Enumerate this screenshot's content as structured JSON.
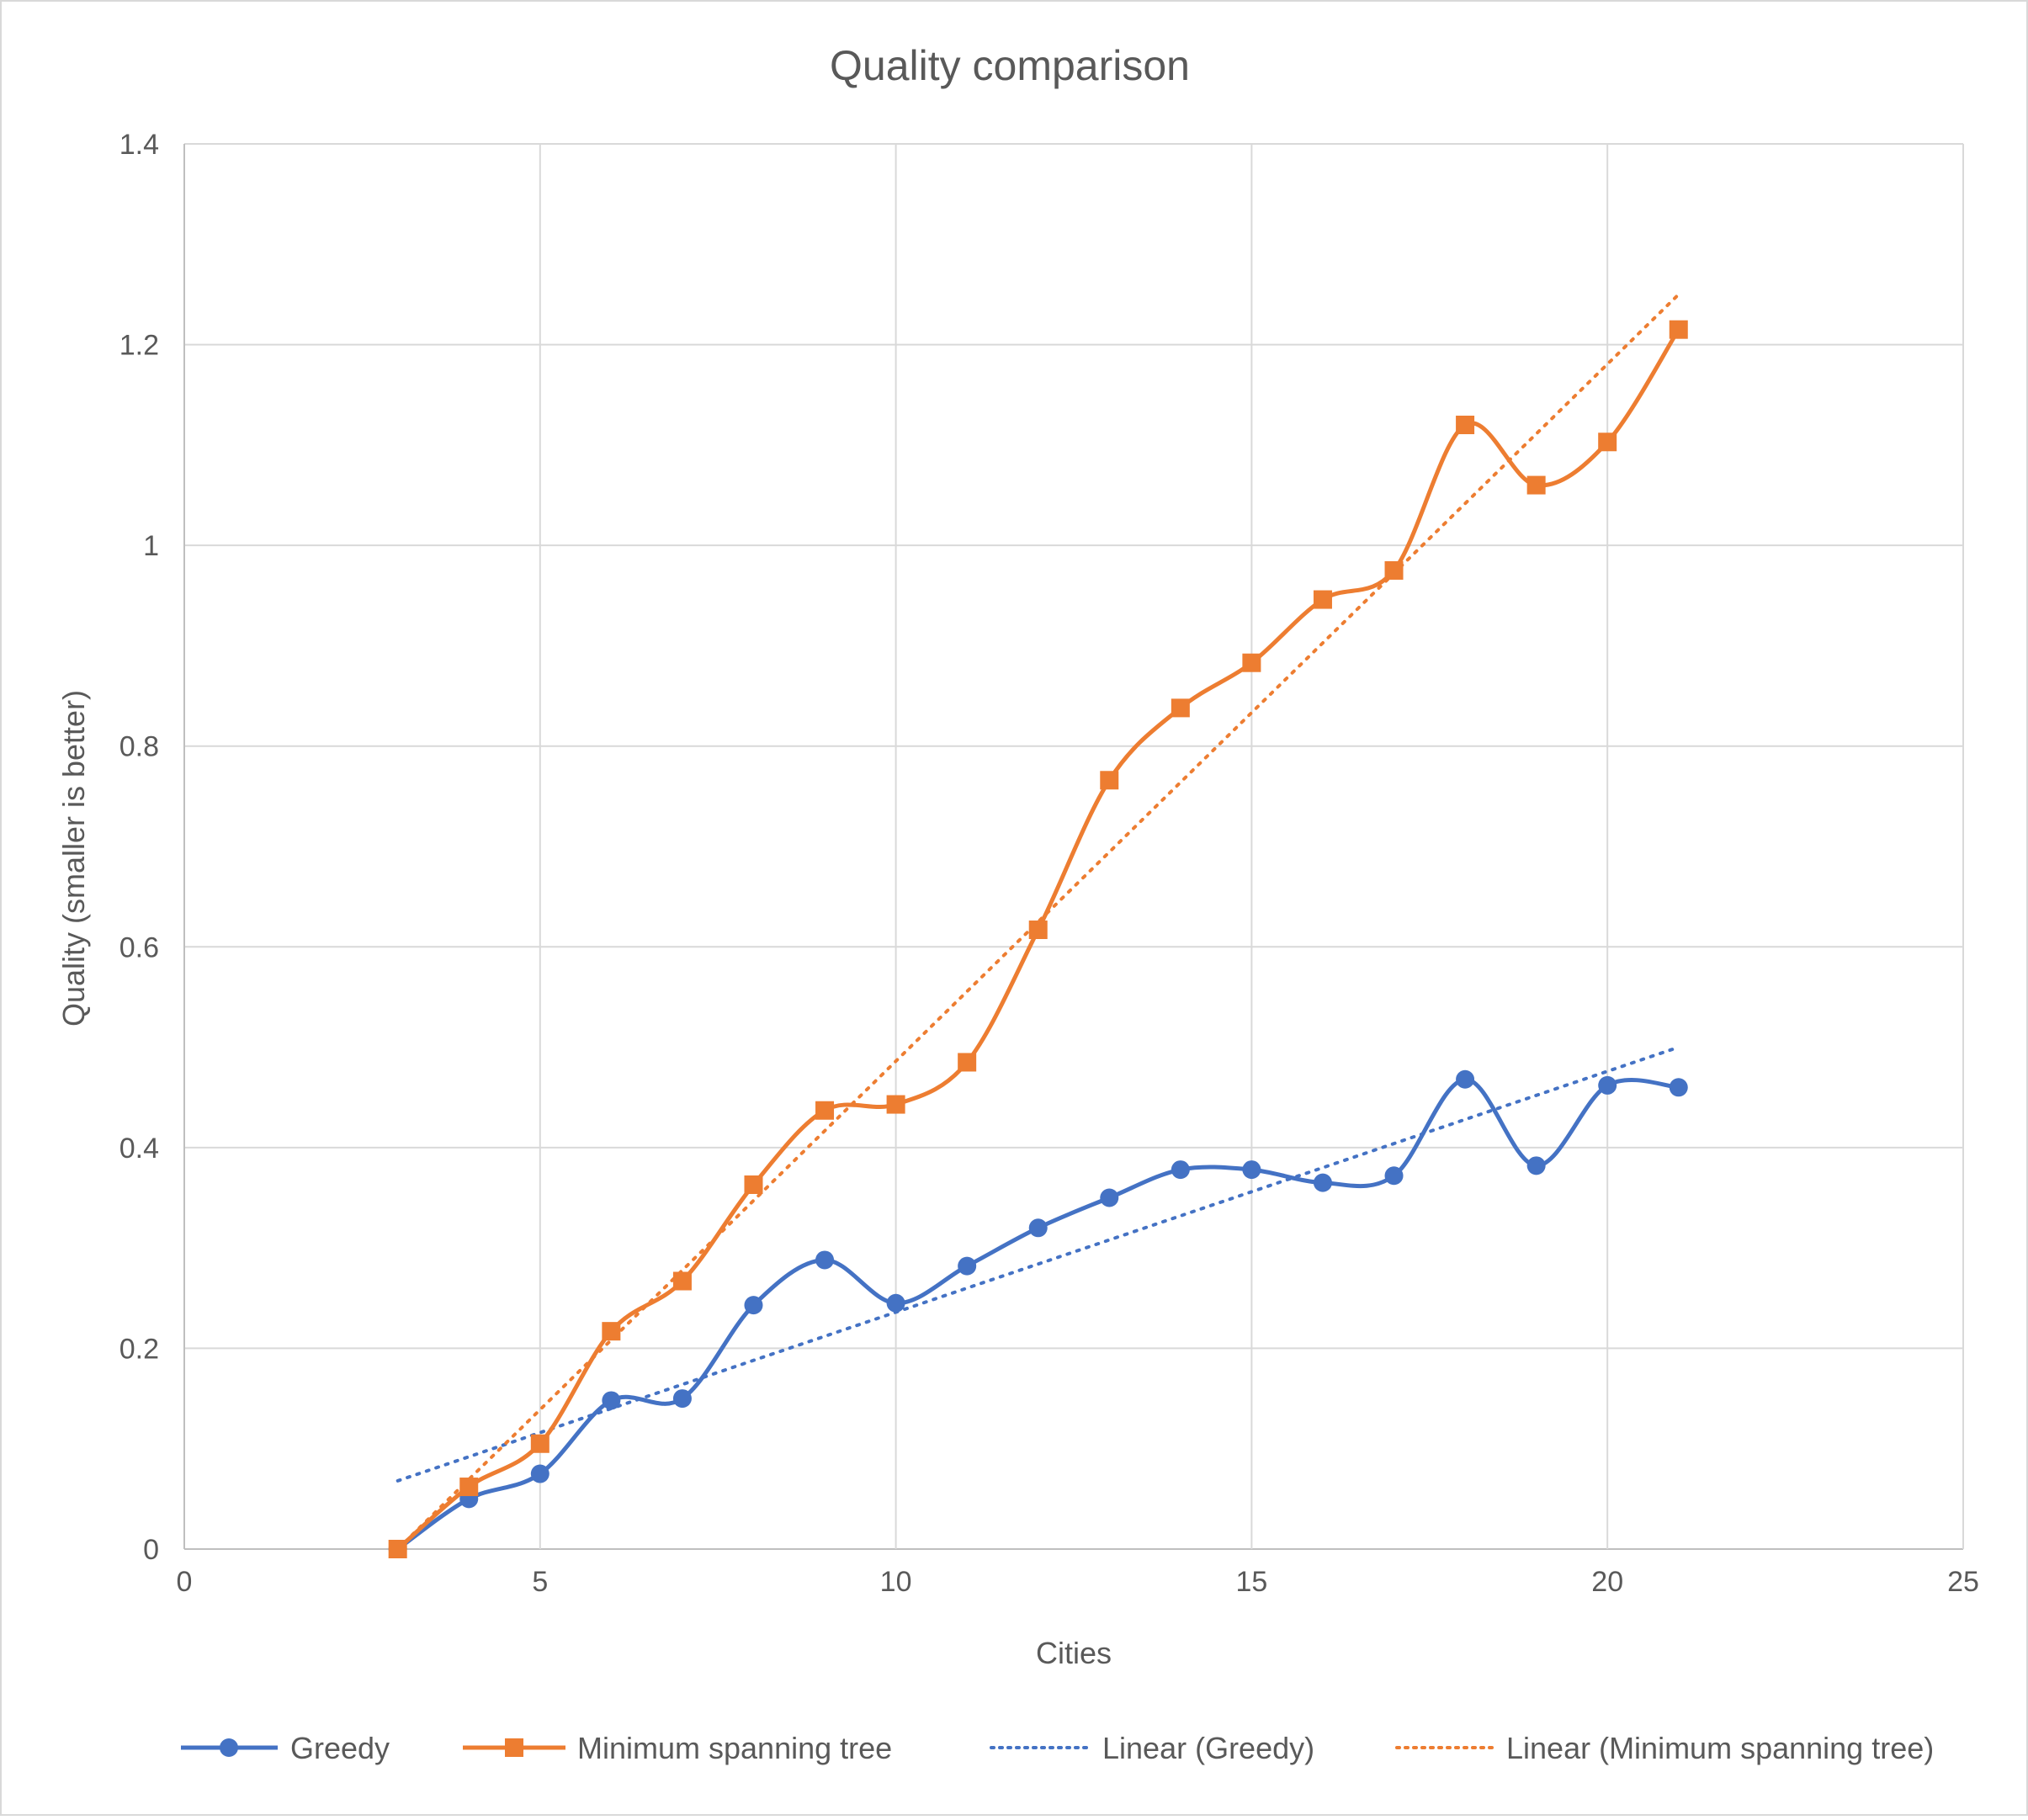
{
  "chart_data": {
    "type": "scatter",
    "title": "Quality comparison",
    "xlabel": "Cities",
    "ylabel": "Quality (smaller is better)",
    "xlim": [
      0,
      25
    ],
    "ylim": [
      0,
      1.4
    ],
    "xticks": [
      "0",
      "5",
      "10",
      "15",
      "20",
      "25"
    ],
    "yticks": [
      "0",
      "0.2",
      "0.4",
      "0.6",
      "0.8",
      "1",
      "1.2",
      "1.4"
    ],
    "grid": true,
    "legend_position": "bottom",
    "series": [
      {
        "name": "Greedy",
        "color": "#4472C4",
        "marker": "circle",
        "line": "smooth",
        "x": [
          3,
          4,
          5,
          6,
          7,
          8,
          9,
          10,
          11,
          12,
          13,
          14,
          15,
          16,
          17,
          18,
          19,
          20,
          21
        ],
        "y": [
          0.0,
          0.05,
          0.075,
          0.148,
          0.15,
          0.243,
          0.288,
          0.245,
          0.282,
          0.32,
          0.35,
          0.378,
          0.378,
          0.365,
          0.372,
          0.468,
          0.382,
          0.462,
          0.46
        ]
      },
      {
        "name": "Minimum spanning tree",
        "color": "#ED7D31",
        "marker": "square",
        "line": "smooth",
        "x": [
          3,
          4,
          5,
          6,
          7,
          8,
          9,
          10,
          11,
          12,
          13,
          14,
          15,
          16,
          17,
          18,
          19,
          20,
          21
        ],
        "y": [
          0.0,
          0.062,
          0.105,
          0.217,
          0.267,
          0.363,
          0.437,
          0.443,
          0.485,
          0.617,
          0.766,
          0.838,
          0.883,
          0.946,
          0.975,
          1.12,
          1.06,
          1.103,
          1.215
        ]
      },
      {
        "name": "Linear (Greedy)",
        "color": "#4472C4",
        "line": "dotted",
        "x": [
          3,
          21
        ],
        "y": [
          0.068,
          0.5
        ]
      },
      {
        "name": "Linear (Minimum spanning tree)",
        "color": "#ED7D31",
        "line": "dotted",
        "x": [
          3,
          21
        ],
        "y": [
          0.0,
          1.25
        ]
      }
    ]
  }
}
